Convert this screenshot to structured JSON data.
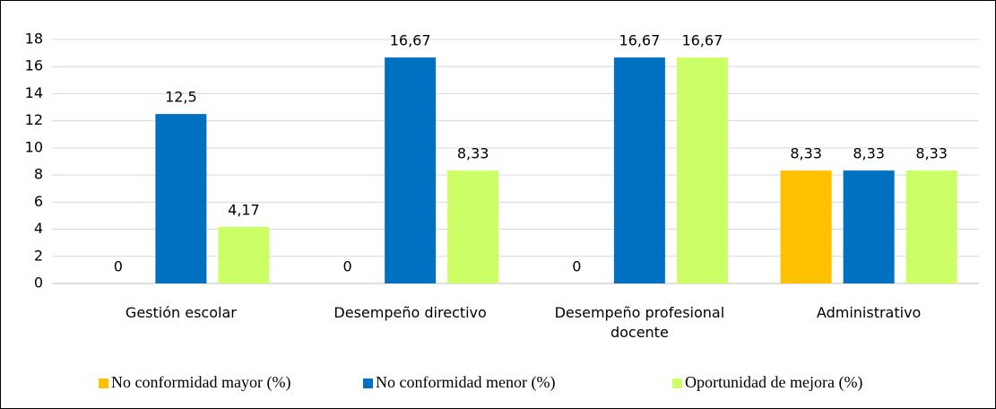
{
  "chart_data": {
    "type": "bar",
    "categories": [
      "Gestión escolar",
      "Desempeño directivo",
      "Desempeño profesional docente",
      "Administrativo"
    ],
    "series": [
      {
        "name": "No conformidad mayor (%)",
        "color": "#ffc000",
        "values": [
          0,
          0,
          0,
          8.33
        ],
        "value_labels": [
          "0",
          "0",
          "0",
          "8,33"
        ]
      },
      {
        "name": "No conformidad menor (%)",
        "color": "#0070c0",
        "values": [
          12.5,
          16.67,
          16.67,
          8.33
        ],
        "value_labels": [
          "12,5",
          "16,67",
          "16,67",
          "8,33"
        ]
      },
      {
        "name": "Oportunidad de mejora (%)",
        "color": "#ccff66",
        "values": [
          4.17,
          8.33,
          16.67,
          8.33
        ],
        "value_labels": [
          "4,17",
          "8,33",
          "16,67",
          "8,33"
        ]
      }
    ],
    "ylim": [
      0,
      18
    ],
    "yticks": [
      0,
      2,
      4,
      6,
      8,
      10,
      12,
      14,
      16,
      18
    ],
    "grid": true,
    "legend": "bottom"
  }
}
